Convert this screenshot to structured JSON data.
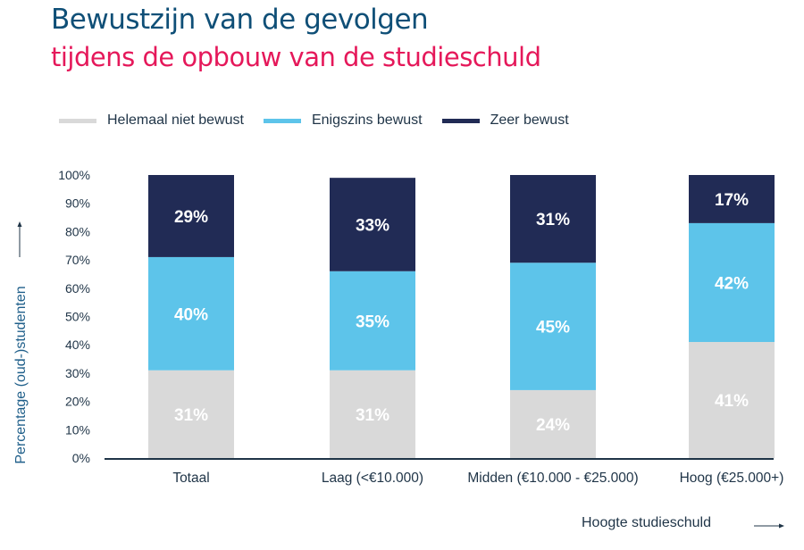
{
  "header": {
    "title": "Bewustzijn van de gevolgen",
    "subtitle": "tijdens de opbouw van de studieschuld"
  },
  "colors": {
    "title": "#0f4f77",
    "subtitle": "#e5185a",
    "helemaal_niet_bewust": "#d9d9d9",
    "enigszins_bewust": "#5dc4ea",
    "zeer_bewust": "#212b55",
    "axis": "#1f3447"
  },
  "chart_data": {
    "type": "bar",
    "stacked": true,
    "title": "Bewustzijn van de gevolgen tijdens de opbouw van de studieschuld",
    "xlabel": "Hoogte studieschuld",
    "ylabel": "Percentage (oud-)studenten",
    "ylim": [
      0,
      100
    ],
    "yticks": [
      "0%",
      "10%",
      "20%",
      "30%",
      "40%",
      "50%",
      "60%",
      "70%",
      "80%",
      "90%",
      "100%"
    ],
    "categories": [
      "Totaal",
      "Laag (<€10.000)",
      "Midden (€10.000 - €25.000)",
      "Hoog (€25.000+)"
    ],
    "legend_position": "top-left",
    "grid": false,
    "series": [
      {
        "name": "Helemaal niet bewust",
        "values": [
          31,
          31,
          24,
          41
        ],
        "labels": [
          "31%",
          "31%",
          "24%",
          "41%"
        ]
      },
      {
        "name": "Enigszins bewust",
        "values": [
          40,
          35,
          45,
          42
        ],
        "labels": [
          "40%",
          "35%",
          "45%",
          "42%"
        ]
      },
      {
        "name": "Zeer bewust",
        "values": [
          29,
          33,
          31,
          17
        ],
        "labels": [
          "29%",
          "33%",
          "31%",
          "17%"
        ]
      }
    ]
  }
}
